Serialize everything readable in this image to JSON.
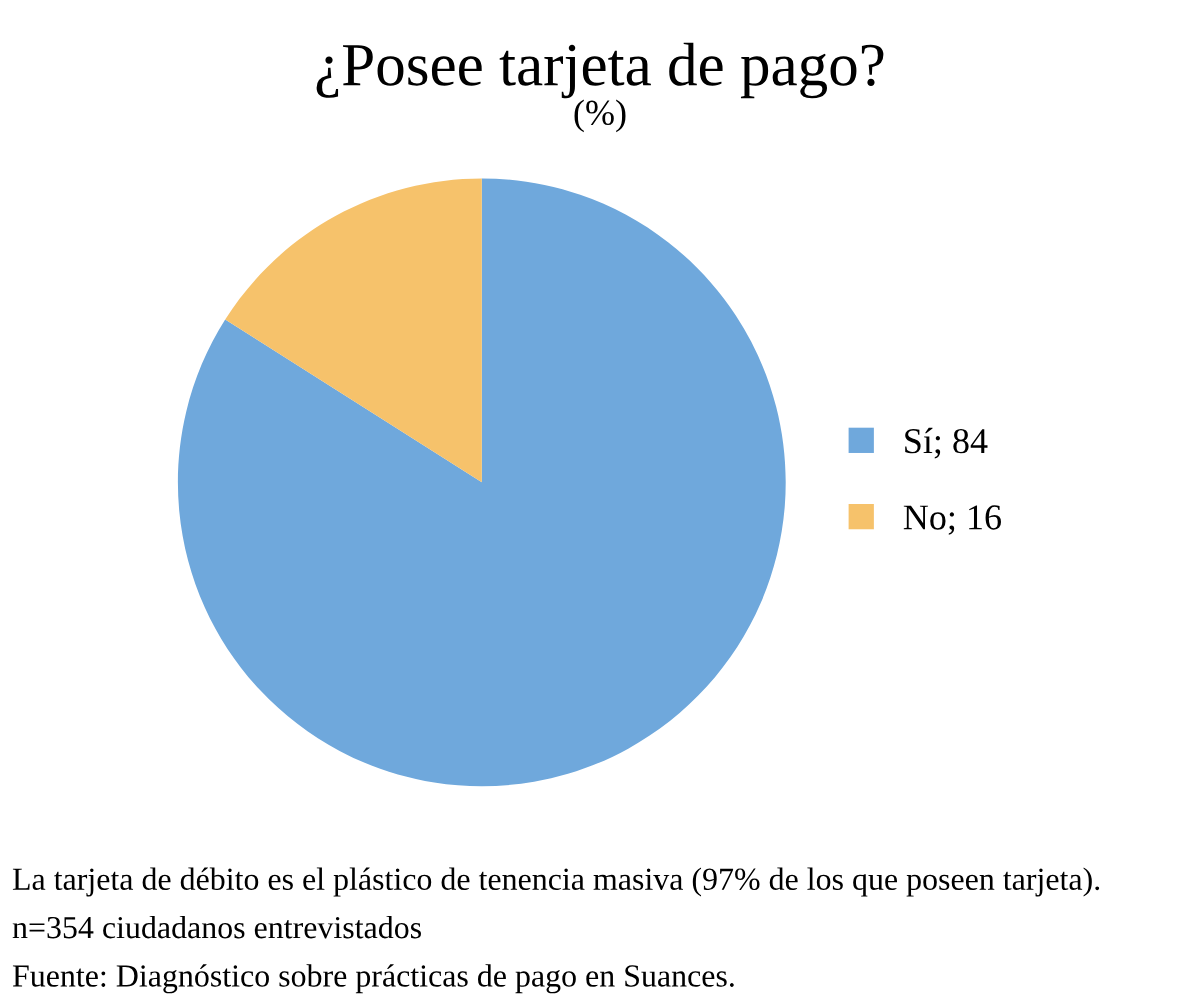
{
  "chart_data": {
    "type": "pie",
    "title": "¿Posee tarjeta de pago?",
    "subtitle": "(%)",
    "categories": [
      "Sí; 84",
      "No; 16"
    ],
    "values": [
      84,
      16
    ],
    "colors": [
      "#6fa8dc",
      "#f6c26b"
    ],
    "legend": "right",
    "annotations": [
      "La tarjeta de débito es el plástico de tenencia masiva (97% de los que poseen tarjeta).",
      "n=354 ciudadanos entrevistados",
      "Fuente: Diagnóstico sobre prácticas de pago en Suances."
    ]
  }
}
